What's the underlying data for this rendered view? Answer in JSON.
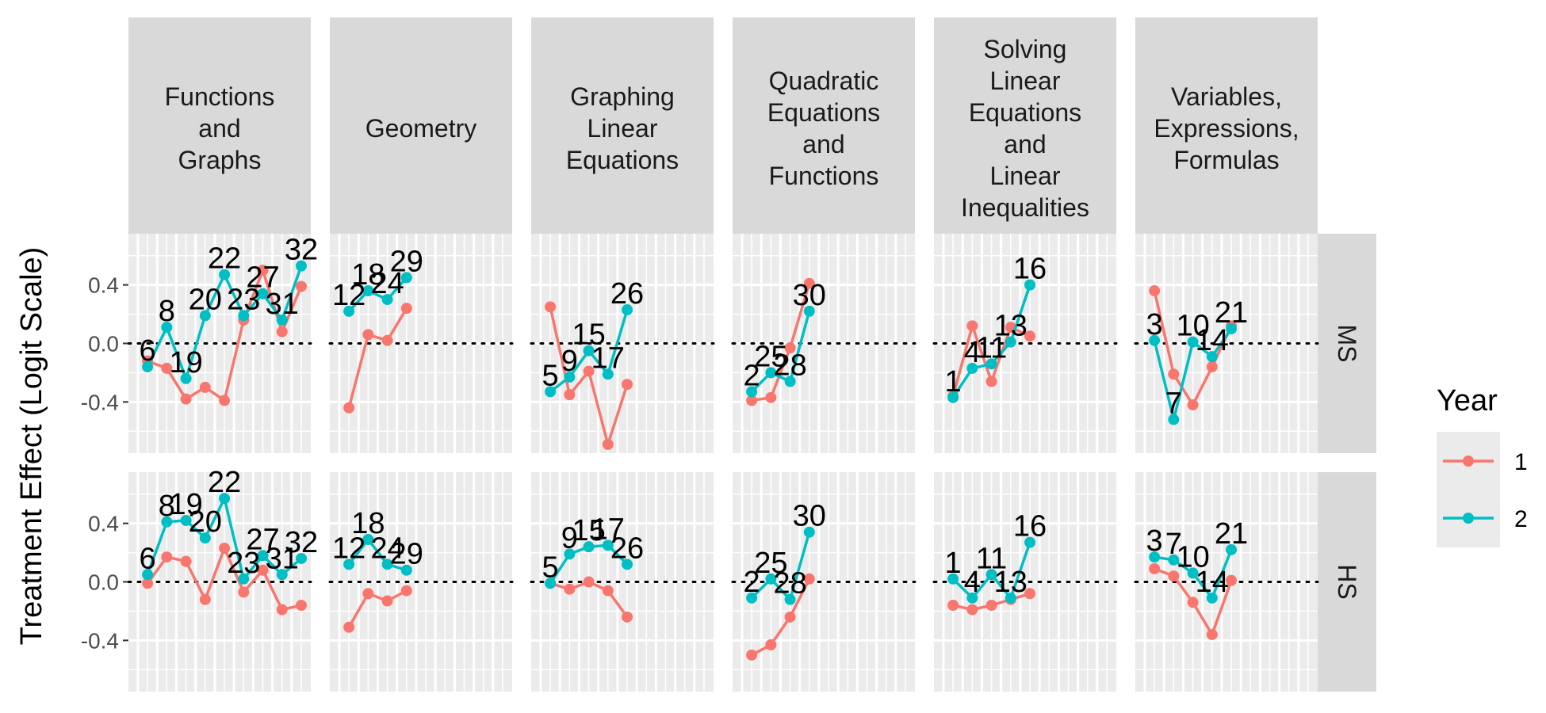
{
  "chart_data": {
    "type": "line",
    "ylabel": "Treatment Effect (Logit Scale)",
    "xlabel": "",
    "ylim": [
      -0.75,
      0.75
    ],
    "y_ticks": [
      -0.4,
      0.0,
      0.4
    ],
    "y_tick_labels": [
      "-0.4",
      "0.0",
      "0.4"
    ],
    "reference_line": {
      "y": 0.0,
      "style": "dotted"
    },
    "legend": {
      "title": "Year",
      "placement": "right",
      "entries": [
        "1",
        "2"
      ]
    },
    "colors": {
      "1": "#F8766D",
      "2": "#00BFC4"
    },
    "x_domain": [
      0,
      8.5
    ],
    "columns": [
      {
        "label": "Functions\nand\nGraphs"
      },
      {
        "label": "Geometry"
      },
      {
        "label": "Graphing\nLinear\nEquations"
      },
      {
        "label": "Quadratic\nEquations\nand\nFunctions"
      },
      {
        "label": "Solving\nLinear\nEquations\nand\nLinear\nInequalities"
      },
      {
        "label": "Variables,\nExpressions,\nFormulas"
      }
    ],
    "rows": [
      {
        "label": "MS"
      },
      {
        "label": "HS"
      }
    ],
    "panels": [
      {
        "col": 0,
        "row": 0,
        "x": [
          0.5,
          1.5,
          2.5,
          3.5,
          4.5,
          5.5,
          6.5,
          7.5,
          8.5
        ],
        "series": [
          {
            "name": "1",
            "values": [
              -0.12,
              -0.17,
              -0.38,
              -0.3,
              -0.39,
              0.16,
              0.5,
              0.08,
              0.39
            ]
          },
          {
            "name": "2",
            "values": [
              -0.16,
              0.11,
              -0.24,
              0.19,
              0.47,
              0.19,
              0.34,
              0.16,
              0.53
            ]
          }
        ],
        "labels": [
          "6",
          "8",
          "19",
          "20",
          "22",
          "23",
          "27",
          "31",
          "32"
        ]
      },
      {
        "col": 1,
        "row": 0,
        "x": [
          0.5,
          1.5,
          2.5,
          3.5
        ],
        "series": [
          {
            "name": "1",
            "values": [
              -0.44,
              0.06,
              0.02,
              0.24
            ]
          },
          {
            "name": "2",
            "values": [
              0.22,
              0.36,
              0.3,
              0.45
            ]
          }
        ],
        "labels": [
          "12",
          "18",
          "24",
          "29"
        ]
      },
      {
        "col": 2,
        "row": 0,
        "x": [
          0.5,
          1.5,
          2.5,
          3.5,
          4.5
        ],
        "series": [
          {
            "name": "1",
            "values": [
              0.25,
              -0.35,
              -0.19,
              -0.69,
              -0.28
            ]
          },
          {
            "name": "2",
            "values": [
              -0.33,
              -0.23,
              -0.05,
              -0.21,
              0.23
            ]
          }
        ],
        "labels": [
          "5",
          "9",
          "15",
          "17",
          "26"
        ]
      },
      {
        "col": 3,
        "row": 0,
        "x": [
          0.5,
          1.5,
          2.5,
          3.5
        ],
        "series": [
          {
            "name": "1",
            "values": [
              -0.39,
              -0.37,
              -0.03,
              0.41
            ]
          },
          {
            "name": "2",
            "values": [
              -0.33,
              -0.2,
              -0.26,
              0.22
            ]
          }
        ],
        "labels": [
          "2",
          "25",
          "28",
          "30"
        ]
      },
      {
        "col": 4,
        "row": 0,
        "x": [
          0.5,
          1.5,
          2.5,
          3.5,
          4.5
        ],
        "series": [
          {
            "name": "1",
            "values": [
              -0.36,
              0.12,
              -0.26,
              0.11,
              0.05
            ]
          },
          {
            "name": "2",
            "values": [
              -0.37,
              -0.17,
              -0.14,
              0.01,
              0.4
            ]
          }
        ],
        "labels": [
          "1",
          "4",
          "11",
          "13",
          "16"
        ]
      },
      {
        "col": 5,
        "row": 0,
        "x": [
          0.5,
          1.5,
          2.5,
          3.5,
          4.5
        ],
        "series": [
          {
            "name": "1",
            "values": [
              0.36,
              -0.21,
              -0.42,
              -0.16,
              0.12
            ]
          },
          {
            "name": "2",
            "values": [
              0.02,
              -0.52,
              0.01,
              -0.09,
              0.1
            ]
          }
        ],
        "labels": [
          "3",
          "7",
          "10",
          "14",
          "21"
        ]
      },
      {
        "col": 0,
        "row": 1,
        "x": [
          0.5,
          1.5,
          2.5,
          3.5,
          4.5,
          5.5,
          6.5,
          7.5,
          8.5
        ],
        "series": [
          {
            "name": "1",
            "values": [
              -0.01,
              0.17,
              0.14,
              -0.12,
              0.23,
              -0.07,
              0.08,
              -0.19,
              -0.16
            ]
          },
          {
            "name": "2",
            "values": [
              0.05,
              0.41,
              0.42,
              0.3,
              0.57,
              0.02,
              0.18,
              0.05,
              0.16
            ]
          }
        ],
        "labels": [
          "6",
          "8",
          "19",
          "20",
          "22",
          "23",
          "27",
          "31",
          "32"
        ]
      },
      {
        "col": 1,
        "row": 1,
        "x": [
          0.5,
          1.5,
          2.5,
          3.5
        ],
        "series": [
          {
            "name": "1",
            "values": [
              -0.31,
              -0.08,
              -0.13,
              -0.06
            ]
          },
          {
            "name": "2",
            "values": [
              0.12,
              0.29,
              0.12,
              0.08
            ]
          }
        ],
        "labels": [
          "12",
          "18",
          "24",
          "29"
        ]
      },
      {
        "col": 2,
        "row": 1,
        "x": [
          0.5,
          1.5,
          2.5,
          3.5,
          4.5
        ],
        "series": [
          {
            "name": "1",
            "values": [
              -0.01,
              -0.05,
              0.0,
              -0.06,
              -0.24
            ]
          },
          {
            "name": "2",
            "values": [
              -0.01,
              0.19,
              0.24,
              0.25,
              0.12
            ]
          }
        ],
        "labels": [
          "5",
          "9",
          "15",
          "17",
          "26"
        ]
      },
      {
        "col": 3,
        "row": 1,
        "x": [
          0.5,
          1.5,
          2.5,
          3.5
        ],
        "series": [
          {
            "name": "1",
            "values": [
              -0.5,
              -0.43,
              -0.24,
              0.02
            ]
          },
          {
            "name": "2",
            "values": [
              -0.11,
              0.02,
              -0.12,
              0.34
            ]
          }
        ],
        "labels": [
          "2",
          "25",
          "28",
          "30"
        ]
      },
      {
        "col": 4,
        "row": 1,
        "x": [
          0.5,
          1.5,
          2.5,
          3.5,
          4.5
        ],
        "series": [
          {
            "name": "1",
            "values": [
              -0.16,
              -0.19,
              -0.16,
              -0.12,
              -0.08
            ]
          },
          {
            "name": "2",
            "values": [
              0.02,
              -0.11,
              0.05,
              -0.11,
              0.27
            ]
          }
        ],
        "labels": [
          "1",
          "4",
          "11",
          "13",
          "16"
        ]
      },
      {
        "col": 5,
        "row": 1,
        "x": [
          0.5,
          1.5,
          2.5,
          3.5,
          4.5
        ],
        "series": [
          {
            "name": "1",
            "values": [
              0.09,
              0.04,
              -0.14,
              -0.36,
              0.01
            ]
          },
          {
            "name": "2",
            "values": [
              0.17,
              0.15,
              0.06,
              -0.11,
              0.22
            ]
          }
        ],
        "labels": [
          "3",
          "7",
          "10",
          "14",
          "21"
        ]
      }
    ]
  }
}
